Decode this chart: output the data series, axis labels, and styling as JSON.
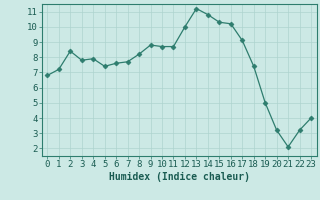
{
  "x": [
    0,
    1,
    2,
    3,
    4,
    5,
    6,
    7,
    8,
    9,
    10,
    11,
    12,
    13,
    14,
    15,
    16,
    17,
    18,
    19,
    20,
    21,
    22,
    23
  ],
  "y": [
    6.8,
    7.2,
    8.4,
    7.8,
    7.9,
    7.4,
    7.6,
    7.7,
    8.2,
    8.8,
    8.7,
    8.7,
    10.0,
    11.2,
    10.8,
    10.3,
    10.2,
    9.1,
    7.4,
    5.0,
    3.2,
    2.1,
    3.2,
    4.0
  ],
  "line_color": "#2e7d6e",
  "marker": "D",
  "marker_size": 2.5,
  "bg_color": "#cce9e5",
  "grid_color": "#aed4cf",
  "xlabel": "Humidex (Indice chaleur)",
  "xlim": [
    -0.5,
    23.5
  ],
  "ylim": [
    1.5,
    11.5
  ],
  "yticks": [
    2,
    3,
    4,
    5,
    6,
    7,
    8,
    9,
    10,
    11
  ],
  "xticks": [
    0,
    1,
    2,
    3,
    4,
    5,
    6,
    7,
    8,
    9,
    10,
    11,
    12,
    13,
    14,
    15,
    16,
    17,
    18,
    19,
    20,
    21,
    22,
    23
  ],
  "tick_color": "#2e7d6e",
  "label_color": "#1a5c52",
  "xlabel_fontsize": 7,
  "tick_fontsize": 6.5,
  "linewidth": 0.9
}
